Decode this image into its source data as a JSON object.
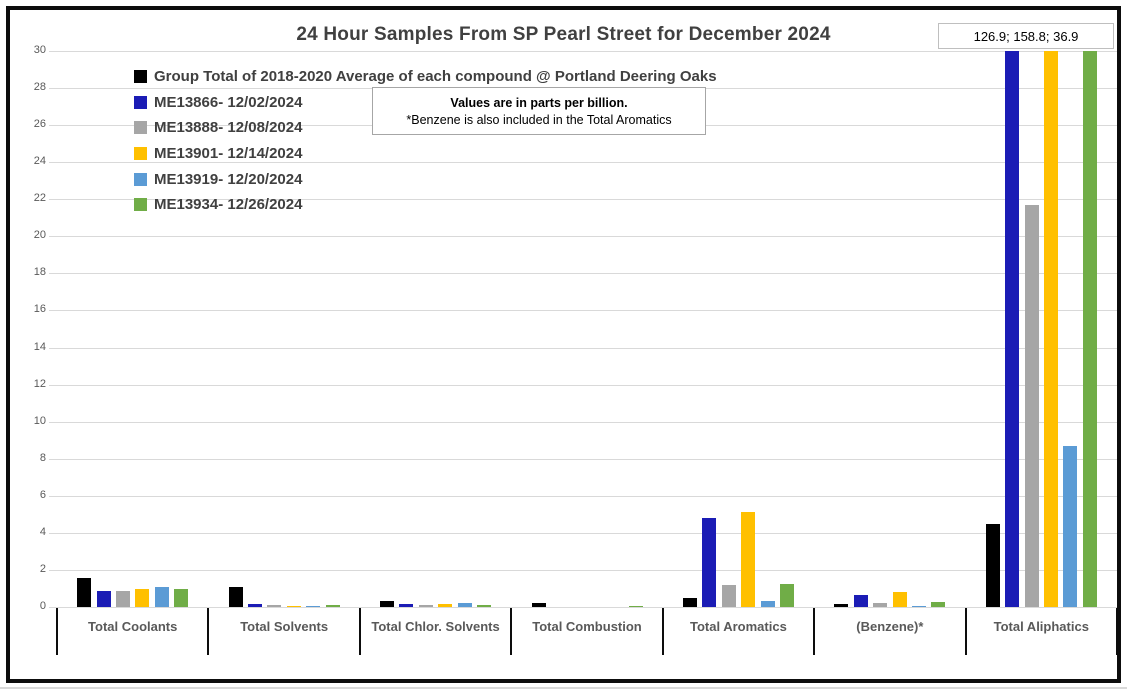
{
  "chart_data": {
    "type": "bar",
    "title": "24 Hour Samples From SP Pearl Street for December 2024",
    "unit_note_line1": "Values are in parts per billion.",
    "unit_note_line2": "*Benzene is also included in the Total Aromatics",
    "offscale_annotation": "126.9; 158.8; 36.9",
    "offscale_annotation_meaning": "off-scale Total Aliphatics values for ME13866, ME13901, ME13934",
    "categories": [
      "Total Coolants",
      "Total Solvents",
      "Total Chlor. Solvents",
      "Total Combustion",
      "Total Aromatics",
      "(Benzene)*",
      "Total Aliphatics"
    ],
    "series": [
      {
        "name": "Group Total of 2018-2020 Average of each compound @ Portland Deering Oaks",
        "color": "#000000",
        "values": [
          1.55,
          1.1,
          0.3,
          0.2,
          0.5,
          0.15,
          4.5
        ]
      },
      {
        "name": "ME13866- 12/02/2024",
        "color": "#1b1cb5",
        "values": [
          0.85,
          0.15,
          0.15,
          0,
          4.8,
          0.65,
          126.9
        ]
      },
      {
        "name": "ME13888- 12/08/2024",
        "color": "#a6a6a6",
        "values": [
          0.85,
          0.1,
          0.12,
          0,
          1.2,
          0.2,
          21.7
        ]
      },
      {
        "name": "ME13901- 12/14/2024",
        "color": "#ffc000",
        "values": [
          0.95,
          0.07,
          0.18,
          0,
          5.1,
          0.8,
          158.8
        ]
      },
      {
        "name": "ME13919- 12/20/2024",
        "color": "#5b9bd5",
        "values": [
          1.1,
          0.07,
          0.2,
          0,
          0.35,
          0.05,
          8.7
        ]
      },
      {
        "name": "ME13934- 12/26/2024",
        "color": "#70ad47",
        "values": [
          0.95,
          0.12,
          0.12,
          0.08,
          1.25,
          0.25,
          36.9
        ]
      }
    ],
    "ylim": [
      0,
      30
    ],
    "ytick_step": 2,
    "grid": true,
    "legend_position": "top-left",
    "bars_clipped_at_ymax": true
  },
  "colors": {
    "title_text": "#404040",
    "axis_text": "#595959",
    "gridline": "#d9d9d9",
    "frame_border": "#0d0d0d"
  }
}
